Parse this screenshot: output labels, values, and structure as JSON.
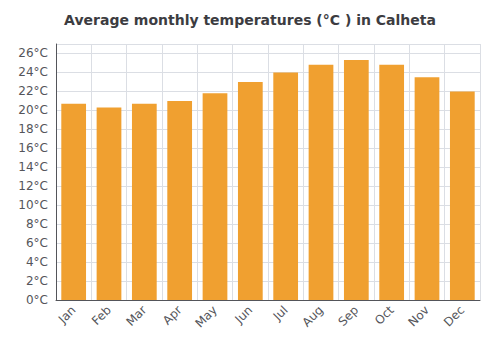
{
  "chart_data": {
    "type": "bar",
    "title": "Average monthly temperatures (°C ) in Calheta",
    "categories": [
      "Jan",
      "Feb",
      "Mar",
      "Apr",
      "May",
      "Jun",
      "Jul",
      "Aug",
      "Sep",
      "Oct",
      "Nov",
      "Dec"
    ],
    "values": [
      20.7,
      20.3,
      20.7,
      21.0,
      21.8,
      23.0,
      24.0,
      24.8,
      25.3,
      24.8,
      23.5,
      22.0
    ],
    "color": "#F0A030",
    "ylim": [
      0,
      27
    ],
    "yticks": [
      {
        "value": 0,
        "label": "0°C"
      },
      {
        "value": 2,
        "label": "2°C"
      },
      {
        "value": 4,
        "label": "4°C"
      },
      {
        "value": 6,
        "label": "6°C"
      },
      {
        "value": 8,
        "label": "8°C"
      },
      {
        "value": 10,
        "label": "10°C"
      },
      {
        "value": 12,
        "label": "12°C"
      },
      {
        "value": 14,
        "label": "14°C"
      },
      {
        "value": 16,
        "label": "16°C"
      },
      {
        "value": 18,
        "label": "18°C"
      },
      {
        "value": 20,
        "label": "20°C"
      },
      {
        "value": 22,
        "label": "22°C"
      },
      {
        "value": 24,
        "label": "24°C"
      },
      {
        "value": 26,
        "label": "26°C"
      }
    ],
    "grid": true
  }
}
